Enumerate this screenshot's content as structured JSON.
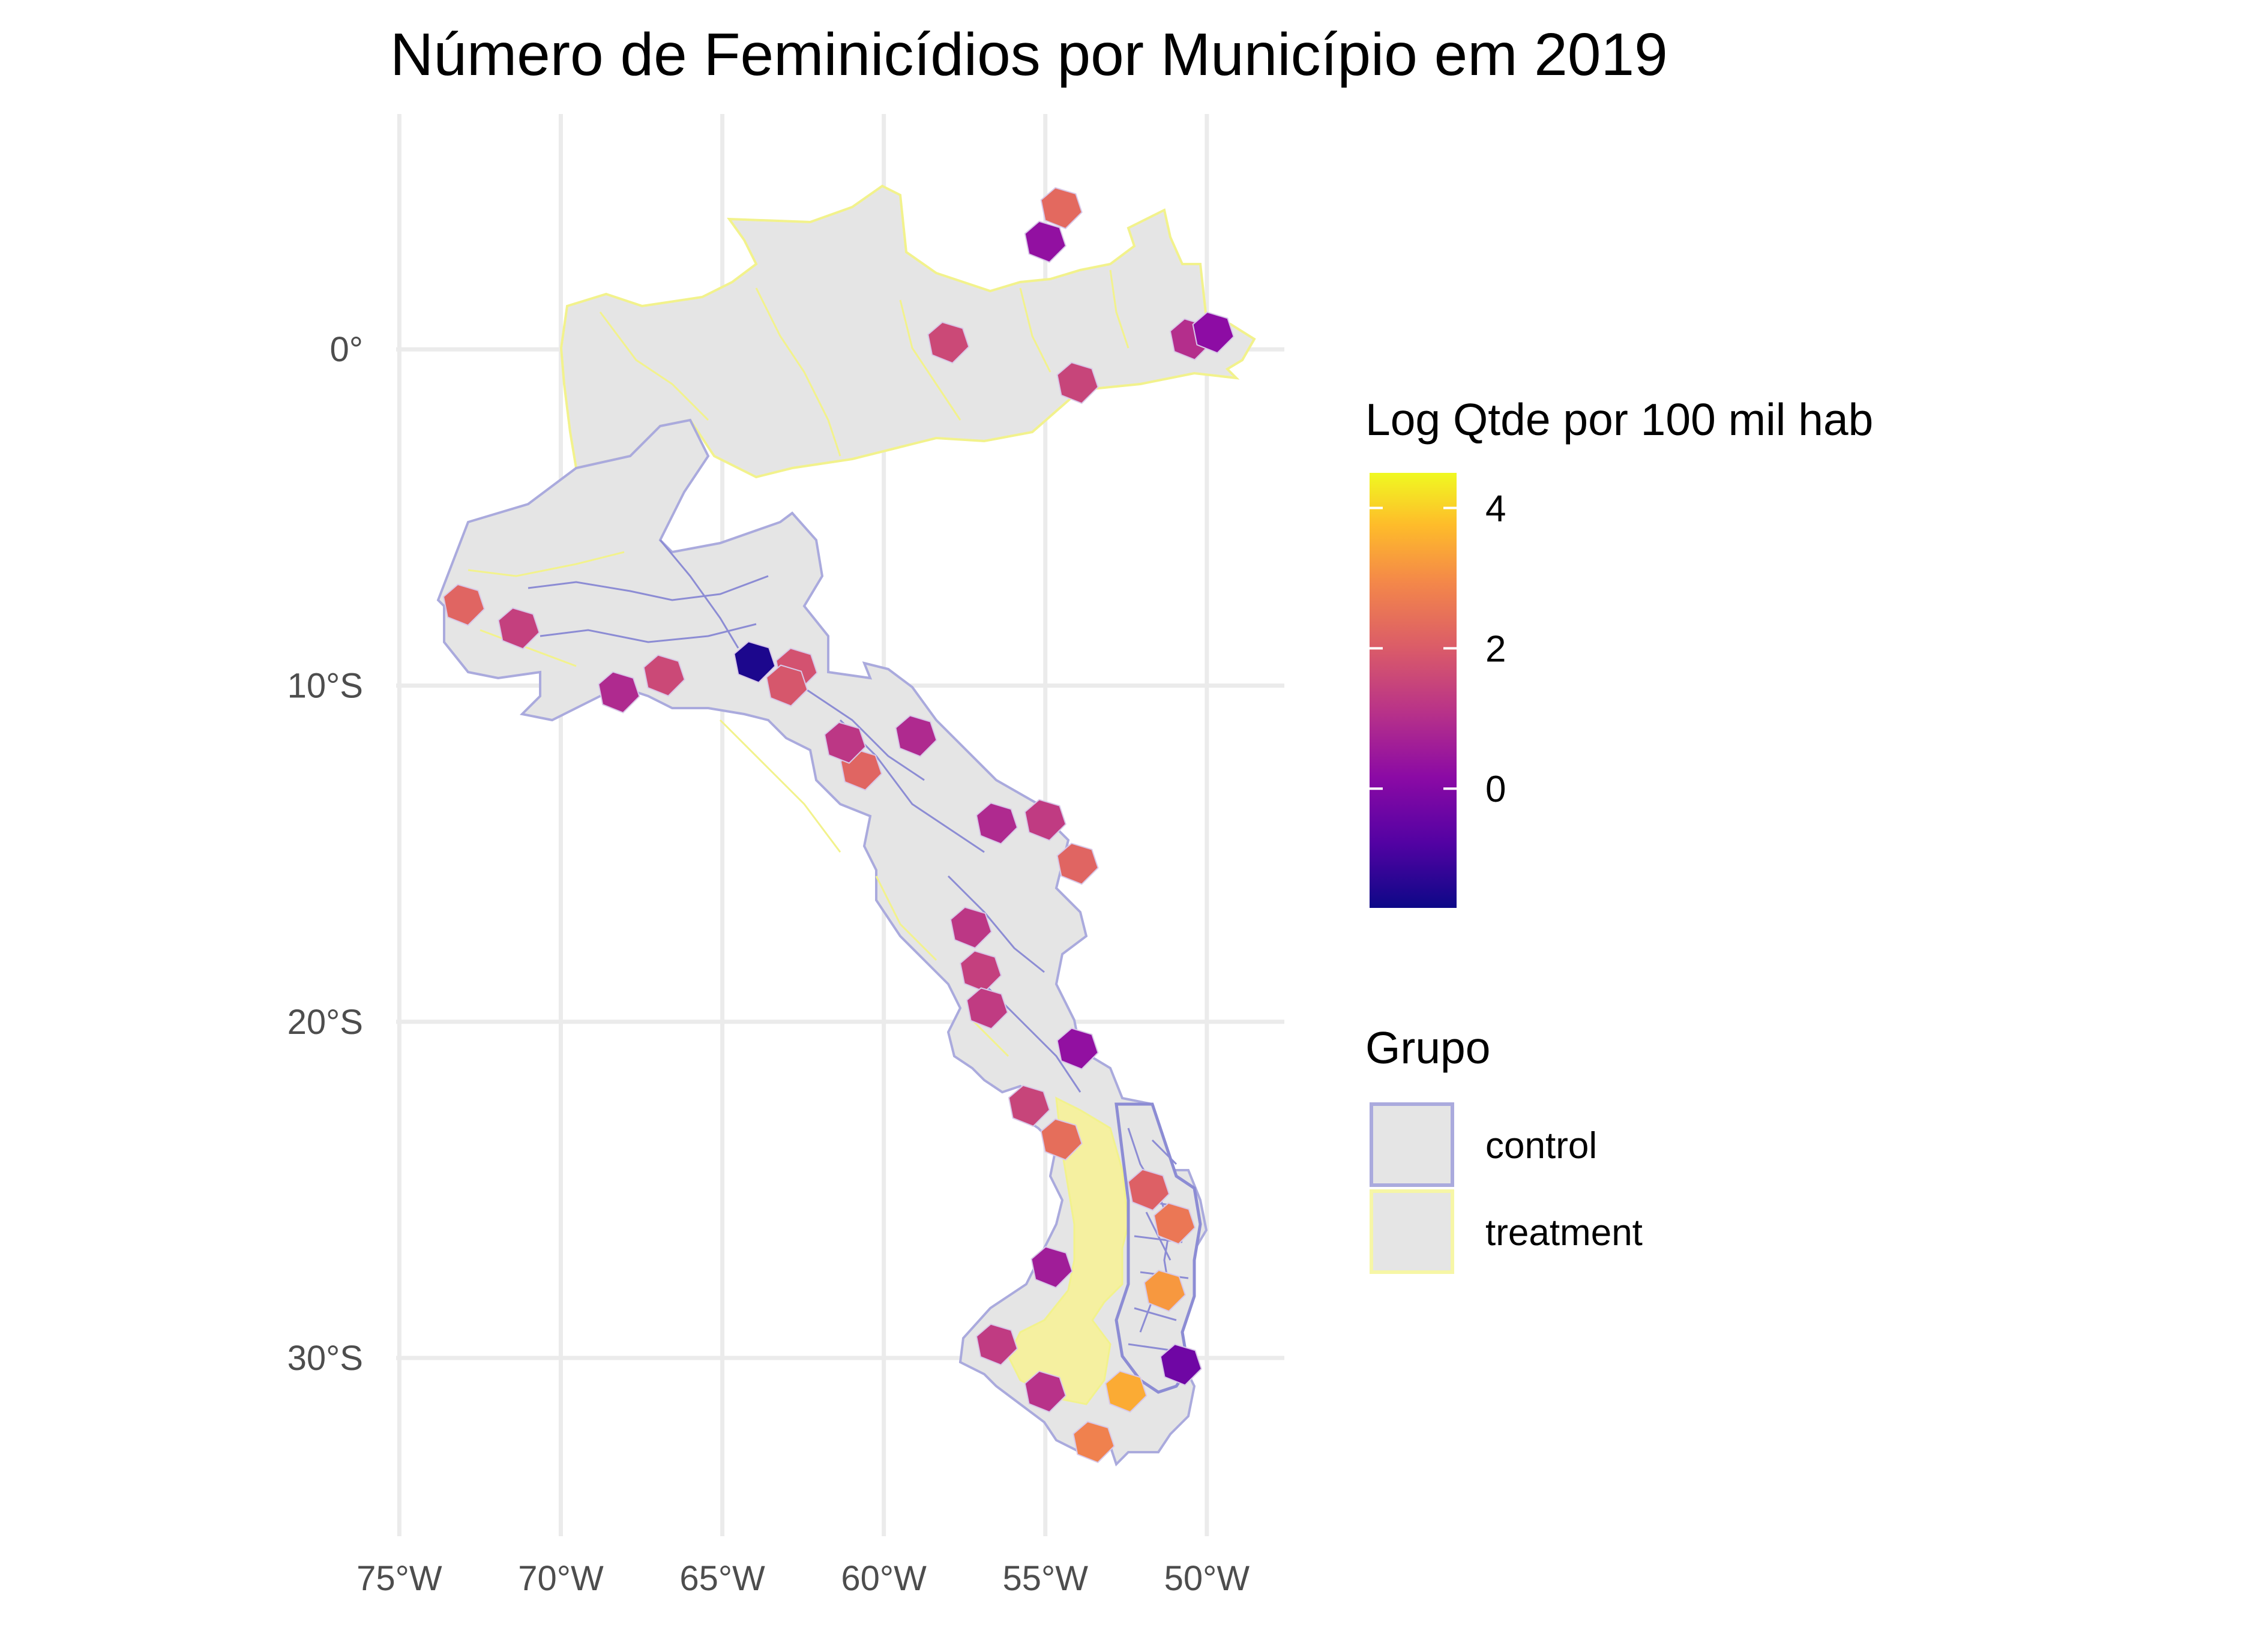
{
  "chart_data": {
    "type": "choropleth",
    "title": "Número de Feminicídios por Município em 2019",
    "xlabel": "",
    "ylabel": "",
    "x_ticks": [
      {
        "value": -75,
        "label": "75°W"
      },
      {
        "value": -70,
        "label": "70°W"
      },
      {
        "value": -65,
        "label": "65°W"
      },
      {
        "value": -60,
        "label": "60°W"
      },
      {
        "value": -55,
        "label": "55°W"
      },
      {
        "value": -50,
        "label": "50°W"
      }
    ],
    "y_ticks": [
      {
        "value": 0,
        "label": "0°"
      },
      {
        "value": -10,
        "label": "10°S"
      },
      {
        "value": -20,
        "label": "20°S"
      },
      {
        "value": -30,
        "label": "30°S"
      }
    ],
    "xlim": [
      -75.1,
      -47.6
    ],
    "ylim": [
      -35.3,
      7.0
    ],
    "grid": true,
    "colorbar": {
      "title": "Log Qtde por 100 mil hab",
      "palette": "plasma",
      "range": [
        -1.7,
        4.5
      ],
      "ticks": [
        {
          "value": 0,
          "label": "0"
        },
        {
          "value": 2,
          "label": "2"
        },
        {
          "value": 4,
          "label": "4"
        }
      ]
    },
    "group_legend": {
      "title": "Grupo",
      "items": [
        {
          "label": "control",
          "border": "#aaaadd"
        },
        {
          "label": "treatment",
          "border": "#f6f6a6"
        }
      ]
    },
    "colors": {
      "land": "#e5e5e5",
      "control_border": "#8c8cd4",
      "treatment_border": "#f2f28c",
      "treatment_fill": "#f5f0a0"
    },
    "highlighted_municipalities": [
      {
        "lon": -54.5,
        "lat": 4.2,
        "value": 2.3
      },
      {
        "lon": -55.0,
        "lat": 3.2,
        "value": 0.3
      },
      {
        "lon": -58.0,
        "lat": 0.2,
        "value": 1.6
      },
      {
        "lon": -54.0,
        "lat": -1.0,
        "value": 1.5
      },
      {
        "lon": -50.5,
        "lat": 0.3,
        "value": 1.0
      },
      {
        "lon": -49.8,
        "lat": 0.5,
        "value": 0.2
      },
      {
        "lon": -73.0,
        "lat": -7.6,
        "value": 2.2
      },
      {
        "lon": -71.3,
        "lat": -8.3,
        "value": 1.4
      },
      {
        "lon": -68.2,
        "lat": -10.2,
        "value": 0.9
      },
      {
        "lon": -66.8,
        "lat": -9.7,
        "value": 1.6
      },
      {
        "lon": -64.0,
        "lat": -9.3,
        "value": -1.5
      },
      {
        "lon": -62.7,
        "lat": -9.5,
        "value": 1.8
      },
      {
        "lon": -63.0,
        "lat": -10.0,
        "value": 1.9
      },
      {
        "lon": -59.0,
        "lat": -11.5,
        "value": 0.9
      },
      {
        "lon": -60.7,
        "lat": -12.5,
        "value": 2.2
      },
      {
        "lon": -61.2,
        "lat": -11.7,
        "value": 1.2
      },
      {
        "lon": -56.5,
        "lat": -14.1,
        "value": 0.9
      },
      {
        "lon": -54.0,
        "lat": -15.3,
        "value": 2.2
      },
      {
        "lon": -55.0,
        "lat": -14.0,
        "value": 1.3
      },
      {
        "lon": -57.3,
        "lat": -17.2,
        "value": 1.2
      },
      {
        "lon": -57.0,
        "lat": -18.5,
        "value": 1.4
      },
      {
        "lon": -56.8,
        "lat": -19.6,
        "value": 1.3
      },
      {
        "lon": -54.0,
        "lat": -20.8,
        "value": 0.3
      },
      {
        "lon": -55.5,
        "lat": -22.5,
        "value": 1.5
      },
      {
        "lon": -54.5,
        "lat": -23.5,
        "value": 2.4
      },
      {
        "lon": -54.8,
        "lat": -27.3,
        "value": 0.6
      },
      {
        "lon": -56.5,
        "lat": -29.6,
        "value": 1.3
      },
      {
        "lon": -55.0,
        "lat": -31.0,
        "value": 1.1
      },
      {
        "lon": -53.5,
        "lat": -32.5,
        "value": 2.8
      },
      {
        "lon": -51.8,
        "lat": -25.0,
        "value": 2.1
      },
      {
        "lon": -51.0,
        "lat": -26.0,
        "value": 2.6
      },
      {
        "lon": -51.3,
        "lat": -28.0,
        "value": 3.2
      },
      {
        "lon": -52.5,
        "lat": -31.0,
        "value": 3.5
      },
      {
        "lon": -50.8,
        "lat": -30.2,
        "value": -0.3
      }
    ]
  }
}
